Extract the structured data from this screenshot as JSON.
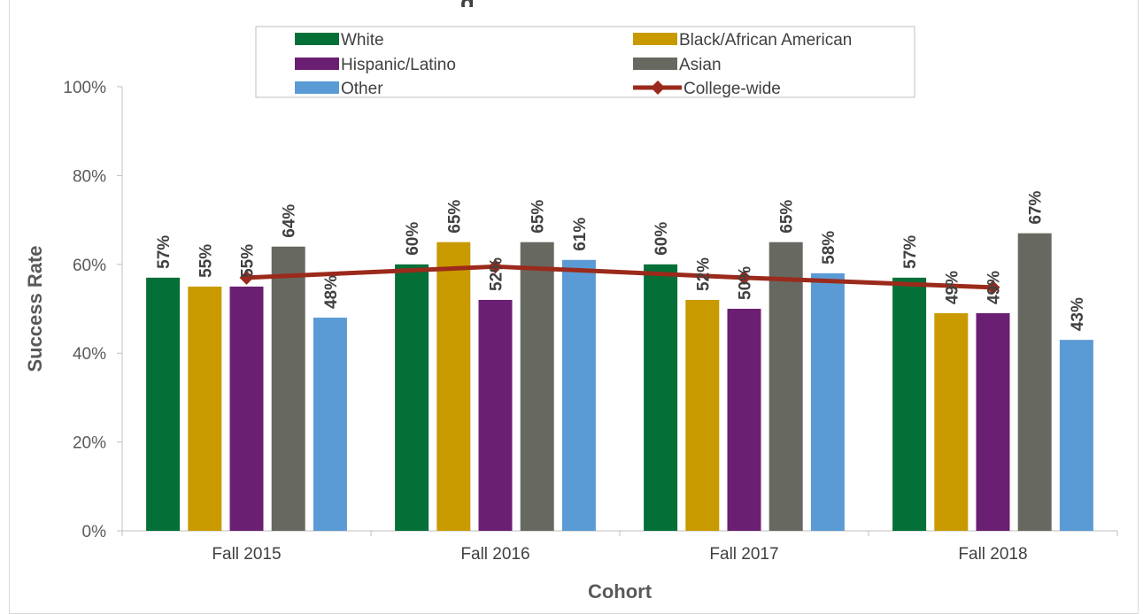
{
  "chart_data": {
    "type": "bar",
    "title": "",
    "xlabel": "Cohort",
    "ylabel": "Success Rate",
    "categories": [
      "Fall 2015",
      "Fall 2016",
      "Fall 2017",
      "Fall 2018"
    ],
    "ylim": [
      0,
      1
    ],
    "yticks": [
      "0%",
      "20%",
      "40%",
      "60%",
      "80%",
      "100%"
    ],
    "series": [
      {
        "name": "White",
        "color": "#047038",
        "values": [
          0.57,
          0.6,
          0.6,
          0.57
        ],
        "labels": [
          "57%",
          "60%",
          "60%",
          "57%"
        ]
      },
      {
        "name": "Black/African American",
        "color": "#c99a00",
        "values": [
          0.55,
          0.65,
          0.52,
          0.49
        ],
        "labels": [
          "55%",
          "65%",
          "52%",
          "49%"
        ]
      },
      {
        "name": "Hispanic/Latino",
        "color": "#6b1f72",
        "values": [
          0.55,
          0.52,
          0.5,
          0.49
        ],
        "labels": [
          "55%",
          "52%",
          "50%",
          "49%"
        ]
      },
      {
        "name": "Asian",
        "color": "#676960",
        "values": [
          0.64,
          0.65,
          0.65,
          0.67
        ],
        "labels": [
          "64%",
          "65%",
          "65%",
          "67%"
        ]
      },
      {
        "name": "Other",
        "color": "#5b9bd5",
        "values": [
          0.48,
          0.61,
          0.58,
          0.43
        ],
        "labels": [
          "48%",
          "61%",
          "58%",
          "43%"
        ]
      }
    ],
    "line": {
      "name": "College-wide",
      "color": "#9b2a1c",
      "values": [
        0.57,
        0.595,
        0.57,
        0.548
      ]
    },
    "legend": "top-center",
    "grid": false
  },
  "title_fragment": "g"
}
